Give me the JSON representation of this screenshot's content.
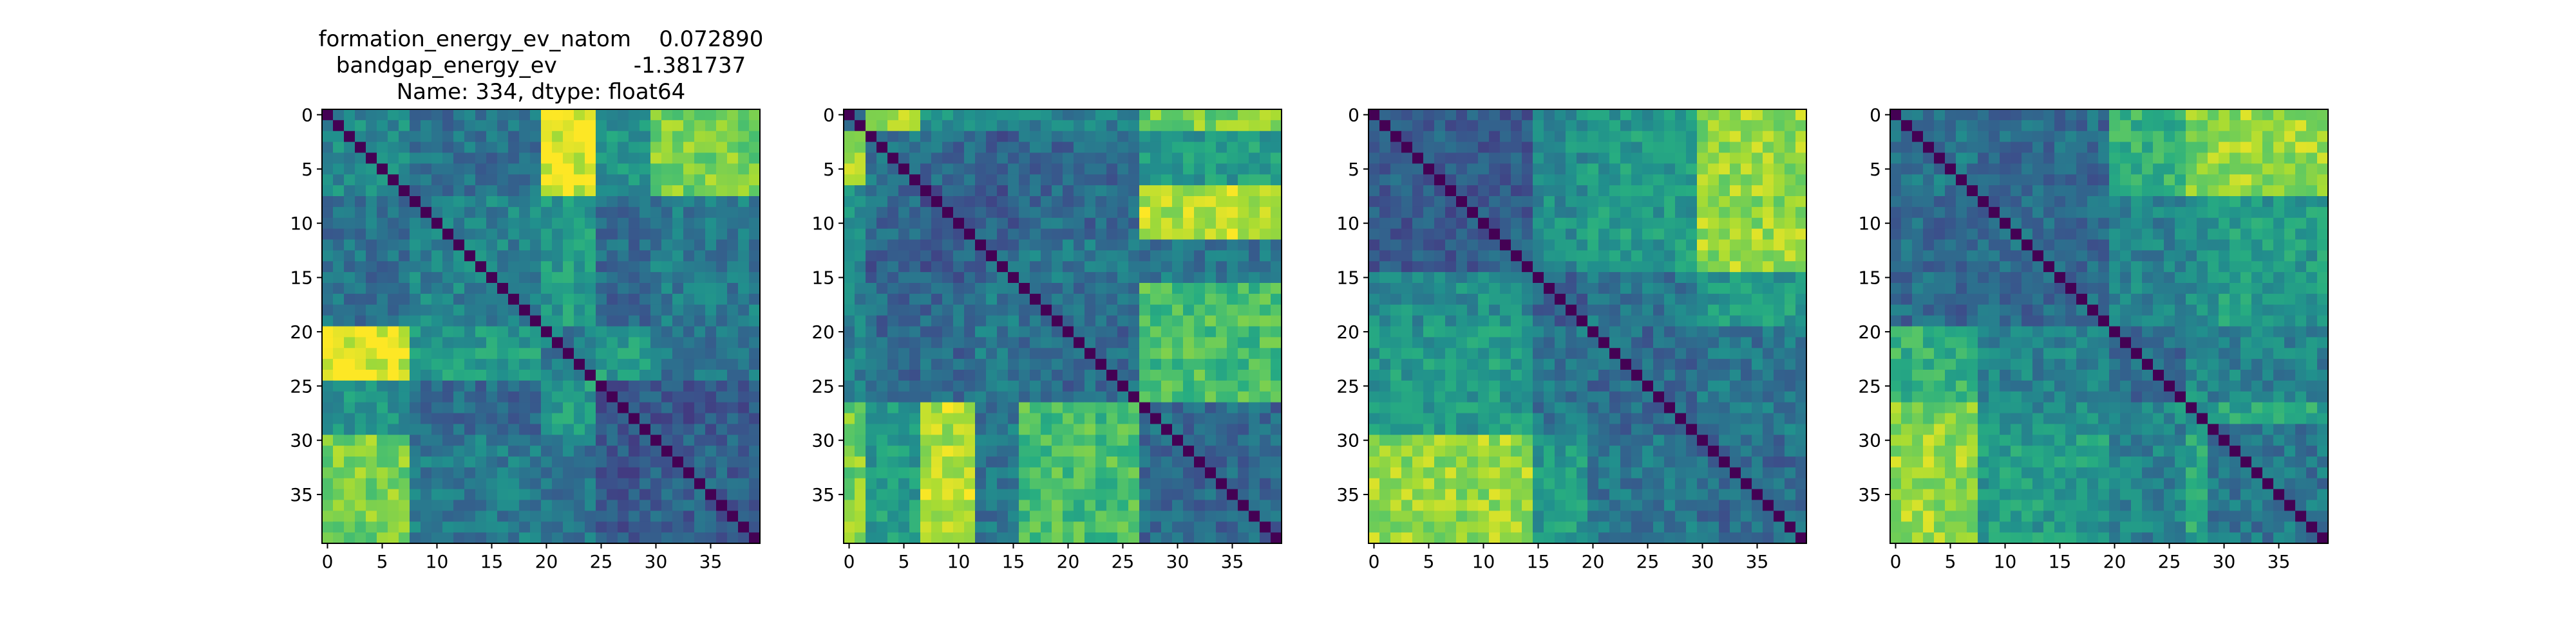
{
  "figure": {
    "title_lines": [
      "formation_energy_ev_natom    0.072890",
      "bandgap_energy_ev           -1.381737",
      "Name: 334, dtype: float64"
    ]
  },
  "chart_data": [
    {
      "type": "heatmap",
      "panel": 1,
      "colormap": "viridis",
      "n": 40,
      "blocks": [
        0,
        8,
        20,
        25,
        30,
        40
      ],
      "block_levels": [
        [
          0.48,
          0.38,
          0.95,
          0.52,
          0.8
        ],
        [
          0.38,
          0.45,
          0.55,
          0.35,
          0.42
        ],
        [
          0.95,
          0.55,
          0.4,
          0.55,
          0.4
        ],
        [
          0.52,
          0.35,
          0.55,
          0.3,
          0.28
        ],
        [
          0.8,
          0.42,
          0.4,
          0.28,
          0.32
        ]
      ],
      "xticks": [
        0,
        5,
        10,
        15,
        20,
        25,
        30,
        35
      ],
      "yticks": [
        0,
        5,
        10,
        15,
        20,
        25,
        30,
        35
      ],
      "xlim": [
        0,
        39
      ],
      "ylim": [
        39,
        0
      ],
      "grid": false
    },
    {
      "type": "heatmap",
      "panel": 2,
      "colormap": "viridis",
      "n": 40,
      "blocks": [
        0,
        2,
        7,
        12,
        16,
        27,
        40
      ],
      "block_levels": [
        [
          0.4,
          0.85,
          0.5,
          0.5,
          0.45,
          0.8
        ],
        [
          0.85,
          0.4,
          0.35,
          0.3,
          0.35,
          0.55
        ],
        [
          0.5,
          0.35,
          0.3,
          0.3,
          0.35,
          0.9
        ],
        [
          0.5,
          0.3,
          0.3,
          0.35,
          0.4,
          0.4
        ],
        [
          0.45,
          0.35,
          0.35,
          0.4,
          0.35,
          0.7
        ],
        [
          0.8,
          0.55,
          0.9,
          0.4,
          0.7,
          0.35
        ]
      ],
      "xticks": [
        0,
        5,
        10,
        15,
        20,
        25,
        30,
        35
      ],
      "yticks": [
        0,
        5,
        10,
        15,
        20,
        25,
        30,
        35
      ],
      "xlim": [
        0,
        39
      ],
      "ylim": [
        39,
        0
      ],
      "grid": false
    },
    {
      "type": "heatmap",
      "panel": 3,
      "colormap": "viridis",
      "n": 40,
      "blocks": [
        0,
        15,
        20,
        30,
        40
      ],
      "block_levels": [
        [
          0.3,
          0.5,
          0.55,
          0.85
        ],
        [
          0.5,
          0.3,
          0.4,
          0.55
        ],
        [
          0.55,
          0.4,
          0.35,
          0.4
        ],
        [
          0.85,
          0.55,
          0.4,
          0.35
        ]
      ],
      "xticks": [
        0,
        5,
        10,
        15,
        20,
        25,
        30,
        35
      ],
      "yticks": [
        0,
        5,
        10,
        15,
        20,
        25,
        30,
        35
      ],
      "xlim": [
        0,
        39
      ],
      "ylim": [
        39,
        0
      ],
      "grid": false
    },
    {
      "type": "heatmap",
      "panel": 4,
      "colormap": "viridis",
      "n": 40,
      "blocks": [
        0,
        8,
        20,
        27,
        29,
        40
      ],
      "block_levels": [
        [
          0.4,
          0.35,
          0.65,
          0.8,
          0.85
        ],
        [
          0.35,
          0.35,
          0.45,
          0.5,
          0.55
        ],
        [
          0.65,
          0.45,
          0.35,
          0.5,
          0.45
        ],
        [
          0.8,
          0.5,
          0.5,
          0.4,
          0.6
        ],
        [
          0.85,
          0.55,
          0.45,
          0.6,
          0.4
        ]
      ],
      "xticks": [
        0,
        5,
        10,
        15,
        20,
        25,
        30,
        35
      ],
      "yticks": [
        0,
        5,
        10,
        15,
        20,
        25,
        30,
        35
      ],
      "xlim": [
        0,
        39
      ],
      "ylim": [
        39,
        0
      ],
      "grid": false
    }
  ]
}
